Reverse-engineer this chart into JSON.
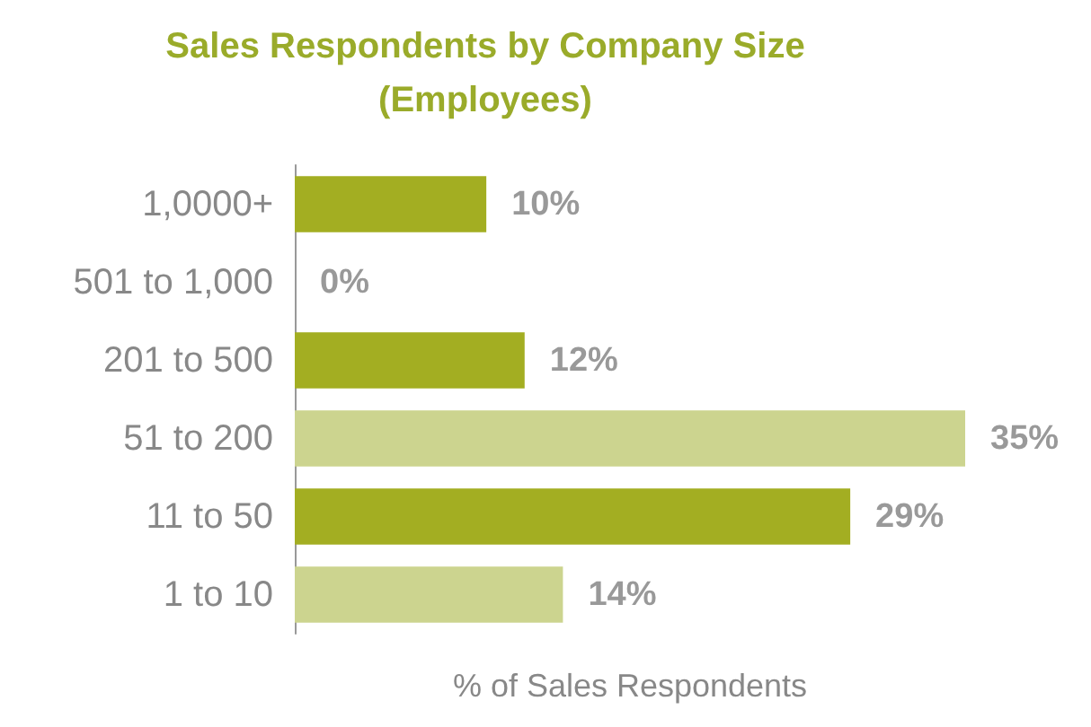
{
  "chart_data": {
    "type": "bar",
    "orientation": "horizontal",
    "title": "Sales Respondents by Company Size\n(Employees)",
    "xlabel": "% of Sales Respondents",
    "categories": [
      "1,0000+",
      "501 to 1,000",
      "201 to 500",
      "51 to 200",
      "11 to 50",
      "1 to 10"
    ],
    "values": [
      10,
      0,
      12,
      35,
      29,
      14
    ],
    "colors": [
      "#a3ae22",
      "#a3ae22",
      "#a3ae22",
      "#ccd48f",
      "#a3ae22",
      "#ccd48f"
    ],
    "value_labels": [
      "10%",
      "0%",
      "12%",
      "35%",
      "29%",
      "14%"
    ],
    "grid": false
  }
}
